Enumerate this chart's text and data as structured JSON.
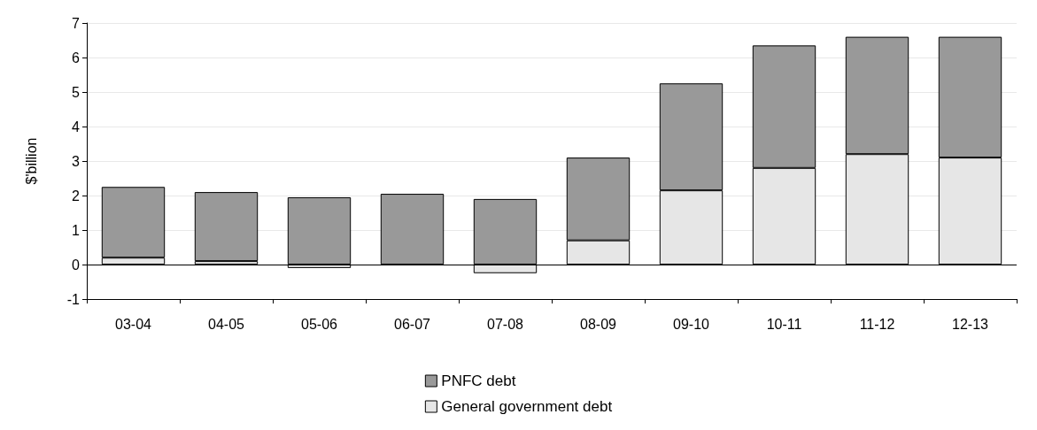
{
  "chart_data": {
    "type": "bar",
    "ylabel": "$'billion",
    "categories": [
      "03-04",
      "04-05",
      "05-06",
      "06-07",
      "07-08",
      "08-09",
      "09-10",
      "10-11",
      "11-12",
      "12-13"
    ],
    "stacked": true,
    "ylim": [
      -1,
      7
    ],
    "yticks": [
      -1,
      0,
      1,
      2,
      3,
      4,
      5,
      6,
      7
    ],
    "grid": "y",
    "legend": "bottom",
    "series": [
      {
        "name": "General government debt",
        "color": "#e6e6e6",
        "values": [
          0.2,
          0.1,
          -0.1,
          0,
          -0.25,
          0.7,
          2.15,
          2.8,
          3.2,
          3.1
        ]
      },
      {
        "name": "PNFC debt",
        "color": "#999999",
        "values": [
          2.05,
          2.0,
          1.95,
          2.05,
          1.9,
          2.4,
          3.1,
          3.55,
          3.4,
          3.5
        ]
      }
    ]
  }
}
